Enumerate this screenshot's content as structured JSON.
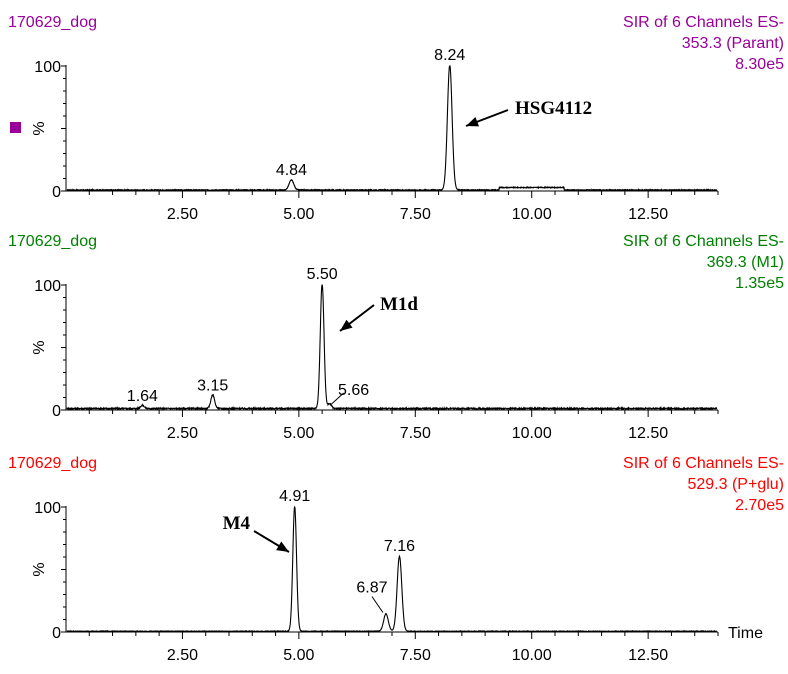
{
  "chart_data": [
    {
      "type": "line",
      "sample": "170629_dog",
      "header": [
        "SIR of 6 Channels ES-",
        "353.3 (Parant)",
        "8.30e5"
      ],
      "color": "#990099",
      "marker": true,
      "ylabel": "%",
      "y_ticks": [
        "0",
        "100"
      ],
      "xlim": [
        0,
        14.0
      ],
      "ylim": [
        0,
        100
      ],
      "x_ticks": [
        2.5,
        5.0,
        7.5,
        10.0,
        12.5
      ],
      "x_tick_labels": [
        "2.50",
        "5.00",
        "7.50",
        "10.00",
        "12.50"
      ],
      "peaks": [
        {
          "rt": 4.84,
          "label": "4.84",
          "height": 8,
          "width": 0.05
        },
        {
          "rt": 8.24,
          "label": "8.24",
          "height": 100,
          "width": 0.05
        }
      ],
      "bumps": [
        {
          "rt": 10.0,
          "height": 2,
          "width": 0.7
        }
      ],
      "baseline": 0.8,
      "annotation": {
        "text": "HSG4112"
      }
    },
    {
      "type": "line",
      "sample": "170629_dog",
      "header": [
        "SIR of 6 Channels ES-",
        "369.3 (M1)",
        "1.35e5"
      ],
      "color": "#008000",
      "marker": false,
      "ylabel": "%",
      "y_ticks": [
        "0",
        "100"
      ],
      "xlim": [
        0,
        14.0
      ],
      "ylim": [
        0,
        100
      ],
      "x_ticks": [
        2.5,
        5.0,
        7.5,
        10.0,
        12.5
      ],
      "x_tick_labels": [
        "2.50",
        "5.00",
        "7.50",
        "10.00",
        "12.50"
      ],
      "peaks": [
        {
          "rt": 1.64,
          "label": "1.64",
          "height": 2.5,
          "width": 0.04
        },
        {
          "rt": 3.15,
          "label": "3.15",
          "height": 11,
          "width": 0.04
        },
        {
          "rt": 5.5,
          "label": "5.50",
          "height": 100,
          "width": 0.04
        },
        {
          "rt": 5.66,
          "label": "5.66",
          "height": 4,
          "width": 0.04
        }
      ],
      "bumps": [],
      "baseline": 1.2,
      "annotation": {
        "text": "M1d"
      }
    },
    {
      "type": "line",
      "sample": "170629_dog",
      "header": [
        "SIR of 6 Channels ES-",
        "529.3 (P+glu)",
        "2.70e5"
      ],
      "color": "#ff0000",
      "marker": false,
      "ylabel": "%",
      "y_ticks": [
        "0",
        "100"
      ],
      "xlim": [
        0,
        14.0
      ],
      "ylim": [
        0,
        100
      ],
      "x_ticks": [
        2.5,
        5.0,
        7.5,
        10.0,
        12.5
      ],
      "x_tick_labels": [
        "2.50",
        "5.00",
        "7.50",
        "10.00",
        "12.50"
      ],
      "xlabel": "Time",
      "peaks": [
        {
          "rt": 4.91,
          "label": "4.91",
          "height": 100,
          "width": 0.04
        },
        {
          "rt": 6.87,
          "label": "6.87",
          "height": 14,
          "width": 0.05
        },
        {
          "rt": 7.16,
          "label": "7.16",
          "height": 60,
          "width": 0.05
        }
      ],
      "bumps": [],
      "baseline": 0.6,
      "annotation": {
        "text": "M4"
      }
    }
  ]
}
